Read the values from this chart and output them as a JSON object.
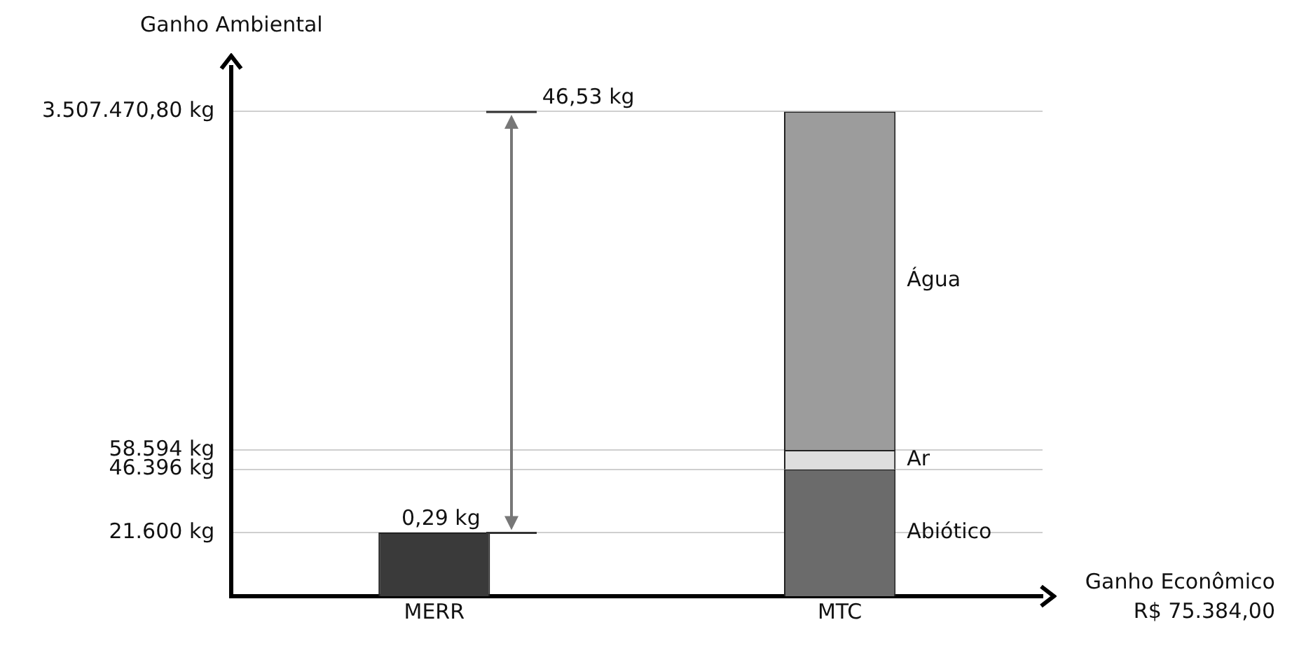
{
  "chart_data": {
    "type": "bar",
    "ylabel": "Ganho Ambiental",
    "xlabel": "Ganho Econômico",
    "categories": [
      "MERR",
      "MTC"
    ],
    "series": [
      {
        "color": "#3a3a3a",
        "values": [
          21600,
          null
        ]
      },
      {
        "name": "Abiótico",
        "color": "#6b6b6b",
        "values": [
          null,
          46396
        ]
      },
      {
        "name": "Ar",
        "color": "#dedede",
        "values": [
          null,
          12198
        ]
      },
      {
        "name": "Água",
        "color": "#9c9c9c",
        "values": [
          null,
          3448876.8
        ]
      }
    ],
    "stacked": true,
    "log": true,
    "ylim": [
      10000,
      6000000
    ],
    "yticks": [
      {
        "value": 21600,
        "label": "21.600 kg"
      },
      {
        "value": 46396,
        "label": "46.396 kg"
      },
      {
        "value": 58594,
        "label": "58.594 kg"
      },
      {
        "value": 3507470.8,
        "label": "3.507.470,80 kg"
      }
    ],
    "grid": "y",
    "legend": false,
    "annotations": [
      "46,53 kg",
      "0,29 kg",
      "R$ 75.384,00"
    ]
  }
}
